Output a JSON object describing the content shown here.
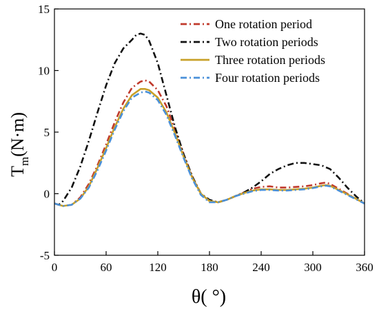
{
  "chart_data": {
    "type": "line",
    "xlabel": "θ( °)",
    "ylabel_main": "T",
    "ylabel_sub": "m",
    "ylabel_unit": "(N·m)",
    "xlim": [
      0,
      360
    ],
    "ylim": [
      -5,
      15
    ],
    "x_ticks": [
      0,
      60,
      120,
      180,
      240,
      300,
      360
    ],
    "y_ticks": [
      -5,
      0,
      5,
      10,
      15
    ],
    "grid": false,
    "legend_position": "top-right",
    "series": [
      {
        "name": "One rotation period",
        "color": "#c0392b",
        "dash": "dashdot",
        "x": [
          0,
          5,
          10,
          20,
          30,
          40,
          50,
          60,
          70,
          80,
          90,
          100,
          105,
          110,
          120,
          130,
          140,
          150,
          160,
          170,
          180,
          190,
          200,
          210,
          220,
          230,
          240,
          250,
          260,
          270,
          280,
          290,
          300,
          310,
          315,
          320,
          330,
          340,
          350,
          360
        ],
        "y": [
          -0.8,
          -0.9,
          -1.0,
          -0.9,
          -0.3,
          0.8,
          2.3,
          4.0,
          5.8,
          7.4,
          8.6,
          9.1,
          9.2,
          9.1,
          8.4,
          7.1,
          5.2,
          3.2,
          1.4,
          0.0,
          -0.6,
          -0.7,
          -0.5,
          -0.2,
          0.1,
          0.4,
          0.55,
          0.6,
          0.5,
          0.5,
          0.55,
          0.6,
          0.7,
          0.85,
          0.9,
          0.8,
          0.4,
          0.0,
          -0.4,
          -0.8
        ]
      },
      {
        "name": "Two rotation periods",
        "color": "#111111",
        "dash": "dashdot",
        "x": [
          0,
          5,
          10,
          20,
          30,
          40,
          50,
          60,
          70,
          80,
          90,
          95,
          100,
          105,
          110,
          120,
          130,
          140,
          150,
          160,
          170,
          180,
          190,
          200,
          210,
          220,
          230,
          240,
          250,
          260,
          270,
          280,
          290,
          300,
          310,
          320,
          330,
          340,
          350,
          360
        ],
        "y": [
          -0.8,
          -0.9,
          -0.6,
          0.5,
          2.2,
          4.3,
          6.6,
          8.8,
          10.6,
          11.8,
          12.5,
          12.9,
          13.0,
          12.9,
          12.4,
          10.6,
          8.0,
          5.4,
          3.2,
          1.4,
          0.0,
          -0.5,
          -0.7,
          -0.5,
          -0.2,
          0.1,
          0.5,
          1.0,
          1.6,
          2.0,
          2.3,
          2.5,
          2.5,
          2.4,
          2.3,
          2.0,
          1.3,
          0.5,
          -0.2,
          -0.8
        ]
      },
      {
        "name": "Three rotation periods",
        "color": "#c8a028",
        "dash": "solid",
        "x": [
          0,
          5,
          10,
          20,
          30,
          40,
          50,
          60,
          70,
          80,
          90,
          100,
          105,
          110,
          120,
          130,
          140,
          150,
          160,
          170,
          180,
          190,
          200,
          210,
          220,
          230,
          240,
          250,
          260,
          270,
          280,
          290,
          300,
          310,
          315,
          320,
          330,
          340,
          350,
          360
        ],
        "y": [
          -0.8,
          -0.9,
          -1.0,
          -0.9,
          -0.4,
          0.6,
          2.1,
          3.7,
          5.4,
          6.9,
          8.0,
          8.5,
          8.5,
          8.4,
          7.8,
          6.6,
          4.9,
          3.0,
          1.3,
          0.0,
          -0.6,
          -0.7,
          -0.5,
          -0.2,
          0.05,
          0.25,
          0.35,
          0.35,
          0.3,
          0.3,
          0.35,
          0.4,
          0.5,
          0.65,
          0.7,
          0.65,
          0.3,
          -0.05,
          -0.4,
          -0.8
        ]
      },
      {
        "name": "Four rotation periods",
        "color": "#4a90d9",
        "dash": "dashdot",
        "x": [
          0,
          5,
          10,
          20,
          30,
          40,
          50,
          60,
          70,
          80,
          90,
          100,
          105,
          110,
          120,
          130,
          140,
          150,
          160,
          170,
          180,
          190,
          200,
          210,
          220,
          230,
          240,
          250,
          260,
          270,
          280,
          290,
          300,
          310,
          315,
          320,
          330,
          340,
          350,
          360
        ],
        "y": [
          -0.8,
          -0.9,
          -1.0,
          -0.9,
          -0.4,
          0.5,
          1.9,
          3.5,
          5.2,
          6.7,
          7.8,
          8.2,
          8.3,
          8.2,
          7.6,
          6.4,
          4.7,
          2.9,
          1.2,
          -0.1,
          -0.7,
          -0.7,
          -0.5,
          -0.2,
          0.0,
          0.2,
          0.3,
          0.3,
          0.25,
          0.25,
          0.3,
          0.35,
          0.45,
          0.6,
          0.65,
          0.6,
          0.25,
          -0.1,
          -0.45,
          -0.8
        ]
      }
    ]
  }
}
